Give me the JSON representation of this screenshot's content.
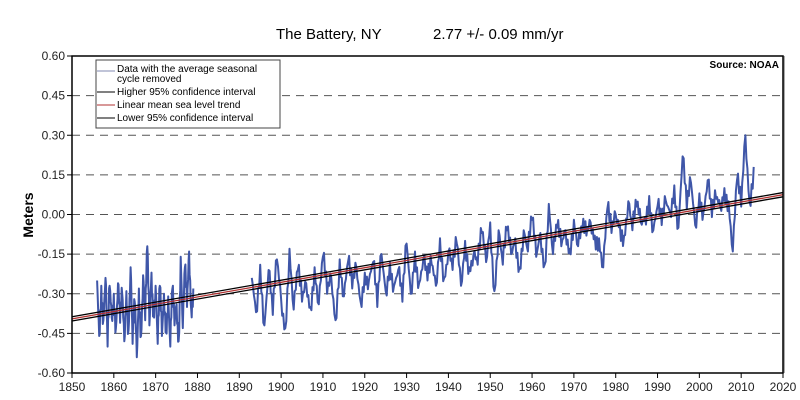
{
  "chart_data": {
    "type": "line",
    "title": "The Battery, NY",
    "subtitle": "2.77 +/- 0.09 mm/yr",
    "source": "Source: NOAA",
    "xlabel": "",
    "ylabel": "Meters",
    "xlim": [
      1850,
      2020
    ],
    "ylim": [
      -0.6,
      0.6
    ],
    "x_ticks": [
      "1850",
      "1860",
      "1870",
      "1880",
      "1890",
      "1900",
      "1910",
      "1920",
      "1930",
      "1940",
      "1950",
      "1960",
      "1970",
      "1980",
      "1990",
      "2000",
      "2010",
      "2020"
    ],
    "y_ticks": [
      "0.60",
      "0.45",
      "0.30",
      "0.15",
      "0.00",
      "-0.15",
      "-0.30",
      "-0.45",
      "-0.60"
    ],
    "grid": "horizontal dashed",
    "legend_position": "top-left",
    "legend": [
      {
        "label": "Data with the average seasonal cycle removed",
        "line1": "Data with the average seasonal",
        "line2": "cycle removed",
        "color": "#3f56a8"
      },
      {
        "label": "Higher 95% confidence interval",
        "color": "#000000"
      },
      {
        "label": "Linear mean sea level trend",
        "color": "#b03030"
      },
      {
        "label": "Lower 95% confidence interval",
        "color": "#000000"
      }
    ],
    "trend": {
      "rate_mm_per_yr": 2.77,
      "ci_mm_per_yr": 0.09,
      "y_at_1850": -0.395,
      "y_at_2020": 0.075,
      "ci_offset_m": 0.008
    },
    "series": [
      {
        "name": "Data with the average seasonal cycle removed",
        "color": "#3f56a8",
        "segments": [
          {
            "x": [
              1856,
              1856.5,
              1857,
              1857.5,
              1858,
              1858.5,
              1859,
              1859.5,
              1860,
              1860.5,
              1861,
              1861.5,
              1862,
              1862.5,
              1863,
              1863.5,
              1864,
              1864.5,
              1865,
              1865.5,
              1866,
              1866.5,
              1867,
              1867.5,
              1868,
              1868.5,
              1869,
              1869.5,
              1870,
              1870.5,
              1871,
              1871.5,
              1872,
              1872.5,
              1873,
              1873.5,
              1874,
              1874.5,
              1875,
              1875.5,
              1876,
              1876.5,
              1877,
              1877.5,
              1878,
              1878.5,
              1879
            ],
            "y": [
              -0.25,
              -0.46,
              -0.27,
              -0.4,
              -0.24,
              -0.5,
              -0.27,
              -0.39,
              -0.3,
              -0.43,
              -0.26,
              -0.41,
              -0.3,
              -0.48,
              -0.29,
              -0.44,
              -0.2,
              -0.49,
              -0.33,
              -0.54,
              -0.28,
              -0.46,
              -0.23,
              -0.4,
              -0.12,
              -0.42,
              -0.22,
              -0.38,
              -0.27,
              -0.49,
              -0.27,
              -0.46,
              -0.3,
              -0.44,
              -0.31,
              -0.5,
              -0.28,
              -0.42,
              -0.34,
              -0.48,
              -0.16,
              -0.43,
              -0.2,
              -0.35,
              -0.14,
              -0.36,
              -0.28
            ]
          },
          {
            "x": [
              1893,
              1894,
              1895,
              1896,
              1897,
              1898,
              1899,
              1900,
              1901,
              1902,
              1903,
              1904,
              1905,
              1906,
              1907,
              1908,
              1909,
              1910,
              1911,
              1912,
              1913,
              1914,
              1915,
              1916,
              1917,
              1918,
              1919,
              1920,
              1921,
              1922,
              1923,
              1924,
              1925,
              1926,
              1927,
              1928,
              1929,
              1930,
              1931,
              1932,
              1933,
              1934,
              1935,
              1936,
              1937,
              1938,
              1939,
              1940,
              1941,
              1942,
              1943,
              1944,
              1945,
              1946,
              1947,
              1948,
              1949,
              1950,
              1951,
              1952,
              1953,
              1954,
              1955,
              1956,
              1957,
              1958,
              1959,
              1960,
              1961,
              1962,
              1963,
              1964,
              1965,
              1966,
              1967,
              1968,
              1969,
              1970,
              1971,
              1972,
              1973,
              1974,
              1975,
              1976,
              1977,
              1978,
              1979,
              1980,
              1981,
              1982,
              1983,
              1984,
              1985,
              1986,
              1987,
              1988,
              1989,
              1990,
              1991,
              1992,
              1993,
              1994,
              1995,
              1996,
              1997,
              1998,
              1999,
              2000,
              2001,
              2002,
              2003,
              2004,
              2005,
              2006,
              2007,
              2008,
              2009,
              2010,
              2011,
              2012,
              2013
            ],
            "y": [
              -0.24,
              -0.37,
              -0.19,
              -0.42,
              -0.21,
              -0.38,
              -0.17,
              -0.32,
              -0.43,
              -0.13,
              -0.36,
              -0.21,
              -0.33,
              -0.26,
              -0.35,
              -0.2,
              -0.34,
              -0.16,
              -0.3,
              -0.24,
              -0.4,
              -0.17,
              -0.31,
              -0.18,
              -0.28,
              -0.2,
              -0.33,
              -0.22,
              -0.25,
              -0.18,
              -0.35,
              -0.15,
              -0.29,
              -0.18,
              -0.27,
              -0.21,
              -0.33,
              -0.11,
              -0.3,
              -0.14,
              -0.26,
              -0.17,
              -0.25,
              -0.19,
              -0.27,
              -0.09,
              -0.24,
              -0.14,
              -0.21,
              -0.11,
              -0.27,
              -0.1,
              -0.2,
              -0.15,
              -0.19,
              -0.07,
              -0.18,
              -0.03,
              -0.29,
              -0.06,
              -0.19,
              -0.06,
              -0.15,
              -0.09,
              -0.2,
              -0.06,
              -0.14,
              -0.02,
              -0.16,
              -0.07,
              -0.19,
              0.04,
              -0.15,
              -0.05,
              -0.12,
              -0.06,
              -0.13,
              -0.02,
              -0.12,
              -0.06,
              -0.08,
              -0.03,
              -0.08,
              -0.09,
              -0.2,
              0.02,
              -0.07,
              0.0,
              -0.04,
              -0.08,
              0.05,
              -0.06,
              0.03,
              -0.03,
              -0.01,
              0.07,
              -0.06,
              0.03,
              -0.04,
              0.05,
              0.01,
              0.11,
              -0.05,
              0.22,
              0.02,
              0.12,
              -0.04,
              0.08,
              0.01,
              0.13,
              -0.01,
              0.06,
              0.03,
              0.1,
              0.05,
              -0.14,
              0.13,
              0.03,
              0.3,
              0.05,
              0.18
            ]
          }
        ]
      }
    ]
  }
}
